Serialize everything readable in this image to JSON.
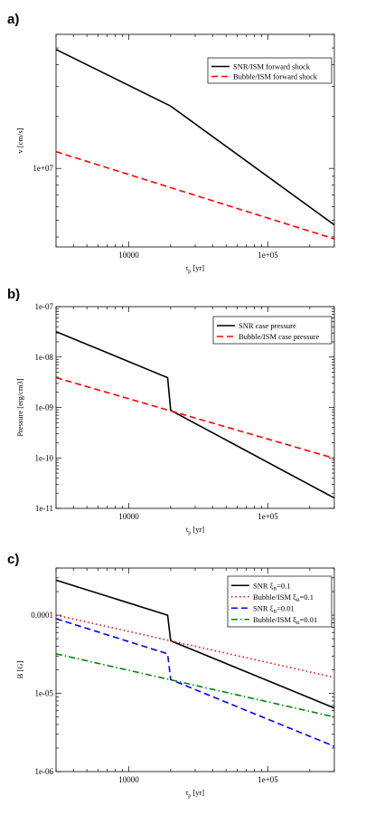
{
  "chart_data": [
    {
      "panel": "a)",
      "type": "line",
      "xlabel_main": "t",
      "xlabel_sub": "p",
      "xlabel_unit": " [yr]",
      "ylabel": "v [cm/s]",
      "xscale": "log",
      "yscale": "log",
      "xlim": [
        3000,
        300000
      ],
      "ylim": [
        3500000,
        60000000
      ],
      "xticks": [
        {
          "value": 10000,
          "label": "10000"
        },
        {
          "value": 100000,
          "label": "1e+05"
        }
      ],
      "yticks": [
        {
          "value": 10000000,
          "label": "1e+07"
        }
      ],
      "legend_position": "top-right",
      "series": [
        {
          "label": "SNR/ISM forward shock",
          "color": "#000000",
          "dash": "solid",
          "x": [
            3000,
            20000,
            300000
          ],
          "y": [
            49000000,
            23000000,
            4700000
          ]
        },
        {
          "label": "Bubble/ISM forward shock",
          "color": "#ff0000",
          "dash": "dashed",
          "x": [
            3000,
            300000
          ],
          "y": [
            12500000,
            3900000
          ]
        }
      ]
    },
    {
      "panel": "b)",
      "type": "line",
      "xlabel_main": "t",
      "xlabel_sub": "p",
      "xlabel_unit": " [yr]",
      "ylabel": "Pressure [erg/cm3]",
      "xscale": "log",
      "yscale": "log",
      "xlim": [
        3000,
        300000
      ],
      "ylim": [
        1e-11,
        1e-07
      ],
      "xticks": [
        {
          "value": 10000,
          "label": "10000"
        },
        {
          "value": 100000,
          "label": "1e+05"
        }
      ],
      "yticks": [
        {
          "value": 1e-07,
          "label": "1e-07"
        },
        {
          "value": 1e-08,
          "label": "1e-08"
        },
        {
          "value": 1e-09,
          "label": "1e-09"
        },
        {
          "value": 1e-10,
          "label": "1e-10"
        },
        {
          "value": 1e-11,
          "label": "1e-11"
        }
      ],
      "legend_position": "top-right",
      "series": [
        {
          "label": "SNR case pressure",
          "color": "#000000",
          "dash": "solid",
          "x": [
            3000,
            19000,
            20000,
            300000
          ],
          "y": [
            3.2e-08,
            3.9e-09,
            8.8e-10,
            1.6e-11
          ]
        },
        {
          "label": "Bubble/ISM case pressure",
          "color": "#ff0000",
          "dash": "dashed",
          "x": [
            3000,
            300000
          ],
          "y": [
            3.9e-09,
            9.8e-11
          ]
        }
      ]
    },
    {
      "panel": "c)",
      "type": "line",
      "xlabel_main": "t",
      "xlabel_sub": "p",
      "xlabel_unit": " [yr]",
      "ylabel": "B [G]",
      "xscale": "log",
      "yscale": "log",
      "xlim": [
        3000,
        300000
      ],
      "ylim": [
        1e-06,
        0.0004
      ],
      "xticks": [
        {
          "value": 10000,
          "label": "10000"
        },
        {
          "value": 100000,
          "label": "1e+05"
        }
      ],
      "yticks": [
        {
          "value": 0.0001,
          "label": "0.0001"
        },
        {
          "value": 1e-05,
          "label": "1e-05"
        },
        {
          "value": 1e-06,
          "label": "1e-06"
        }
      ],
      "legend_position": "top-right",
      "series": [
        {
          "label": "SNR ",
          "label_sym": "ξ",
          "label_sub": "B",
          "label_tail": "=0.1",
          "color": "#000000",
          "dash": "solid",
          "x": [
            3000,
            19000,
            20000,
            300000
          ],
          "y": [
            0.00028,
            0.0001,
            4.7e-05,
            6.5e-06
          ]
        },
        {
          "label": "Bubble/ISM ",
          "label_sym": "ξ",
          "label_sub": "B",
          "label_tail": "=0.1",
          "color": "#ff0000",
          "dash": "dotted",
          "x": [
            3000,
            300000
          ],
          "y": [
            0.0001,
            1.6e-05
          ]
        },
        {
          "label": "SNR ",
          "label_sym": "ξ",
          "label_sub": "B",
          "label_tail": "=0.01",
          "color": "#0000ff",
          "dash": "dashed",
          "x": [
            3000,
            19000,
            20000,
            300000
          ],
          "y": [
            9e-05,
            3.2e-05,
            1.5e-05,
            2.1e-06
          ]
        },
        {
          "label": "Bubble/ISM ",
          "label_sym": "ξ",
          "label_sub": "B",
          "label_tail": "=0.01",
          "color": "#008800",
          "dash": "dashdot",
          "x": [
            3000,
            300000
          ],
          "y": [
            3.2e-05,
            5e-06
          ]
        }
      ]
    }
  ]
}
